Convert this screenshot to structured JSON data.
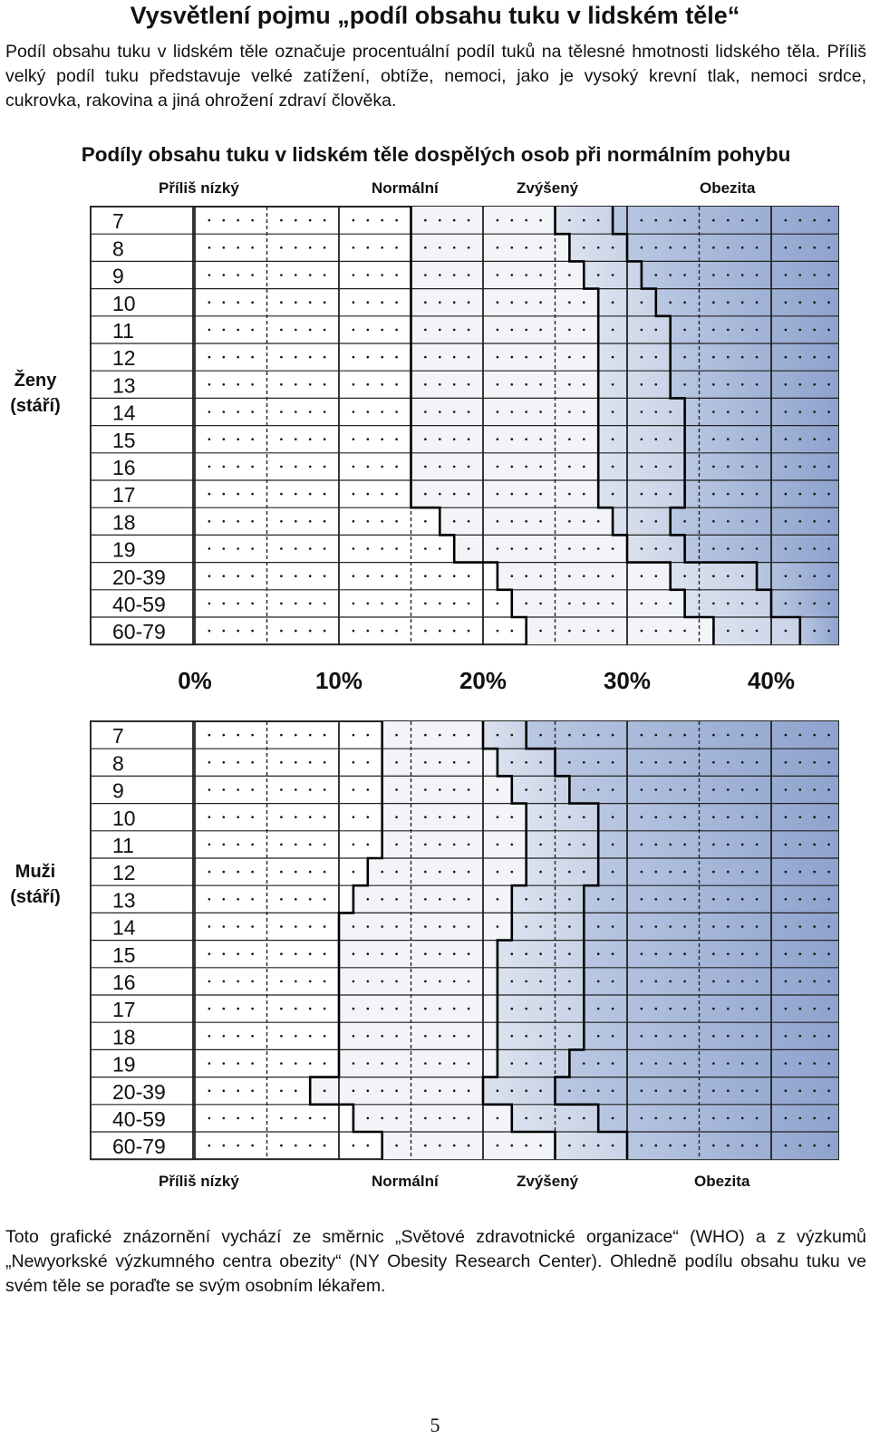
{
  "title": "Vysvětlení pojmu „podíl obsahu tuku v lidském těle“",
  "intro": "Podíl obsahu tuku v lidském těle označuje procentuální podíl tuků na tělesné hmotnosti lidského těla. Příliš velký podíl tuku představuje velké zatížení, obtíže, nemoci, jako je vysoký krevní tlak, nemoci srdce, cukrovka, rakovina a jiná ohrožení zdraví člověka.",
  "subtitle": "Podíly obsahu tuku v lidském těle dospělých osob při normálním pohybu",
  "categories": {
    "too_low": "Příliš nízký",
    "normal": "Normální",
    "elevated": "Zvýšený",
    "obesity": "Obezita"
  },
  "women_label": "Ženy\n(stáří)",
  "men_label": "Muži\n(stáří)",
  "women_label_lines": [
    "Ženy",
    "(stáří)"
  ],
  "men_label_lines": [
    "Muži",
    "(stáří)"
  ],
  "colors": {
    "low_bg": "#ffffff",
    "normal_bg": "#f2f4f8",
    "elevated_bg": "#c9d3e6",
    "obesity_bg": "#8ea3cd",
    "grid": "#222222",
    "dot": "#111111"
  },
  "chart_data": {
    "type": "table",
    "axis_ticks": [
      "0%",
      "10%",
      "20%",
      "30%",
      "40%"
    ],
    "xlim": [
      -7.5,
      45
    ],
    "ages": [
      "7",
      "8",
      "9",
      "10",
      "11",
      "12",
      "13",
      "14",
      "15",
      "16",
      "17",
      "18",
      "19",
      "20-39",
      "40-59",
      "60-79"
    ],
    "women": {
      "low_normal": [
        15,
        15,
        15,
        15,
        15,
        15,
        15,
        15,
        15,
        15,
        15,
        17,
        18,
        21,
        22,
        23
      ],
      "normal_elevated": [
        25,
        26,
        27,
        28,
        28,
        28,
        28,
        28,
        28,
        28,
        28,
        29,
        30,
        33,
        34,
        36
      ],
      "elevated_obesity": [
        29,
        30,
        31,
        32,
        33,
        33,
        33,
        34,
        34,
        34,
        34,
        33,
        34,
        39,
        40,
        42
      ]
    },
    "men": {
      "low_normal": [
        13,
        13,
        13,
        13,
        13,
        12,
        11,
        10,
        10,
        10,
        10,
        10,
        10,
        8,
        11,
        13
      ],
      "normal_elevated": [
        20,
        21,
        22,
        23,
        23,
        23,
        22,
        22,
        21,
        21,
        21,
        21,
        21,
        20,
        22,
        25
      ],
      "elevated_obesity": [
        23,
        25,
        26,
        28,
        28,
        28,
        27,
        27,
        27,
        27,
        27,
        27,
        26,
        25,
        28,
        30
      ]
    }
  },
  "outro": "Toto grafické znázornění vychází ze směrnic „Světové zdravotnické organizace“ (WHO) a z výzkumů „Newyorkské výzkumného centra obezity“ (NY Obesity Research Center). Ohledně podílu obsahu tuku ve svém těle se poraďte se svým osobním lékařem.",
  "page_number": "5"
}
